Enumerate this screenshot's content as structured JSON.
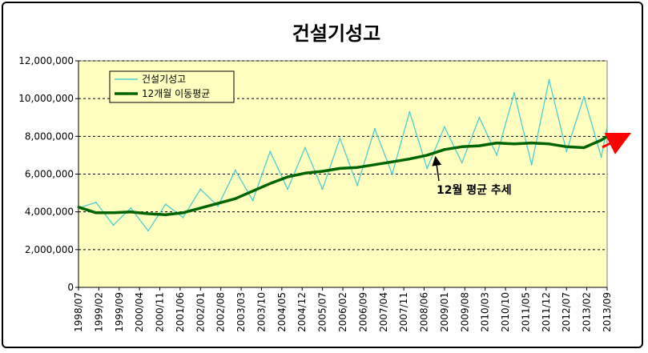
{
  "chart_data": {
    "type": "line",
    "title": "건설기성고",
    "xlabel": "",
    "ylabel": "",
    "ylim": [
      0,
      12000000
    ],
    "y_ticks": [
      0,
      2000000,
      4000000,
      6000000,
      8000000,
      10000000,
      12000000
    ],
    "y_tick_labels": [
      "0",
      "2,000,000",
      "4,000,000",
      "6,000,000",
      "8,000,000",
      "10,000,000",
      "12,000,000"
    ],
    "x_range": [
      "1998/07",
      "2013/09"
    ],
    "x_tick_labels": [
      "1998/07",
      "1999/02",
      "1999/09",
      "2000/04",
      "2000/11",
      "2001/06",
      "2002/01",
      "2002/08",
      "2003/03",
      "2003/10",
      "2004/05",
      "2004/12",
      "2005/07",
      "2006/02",
      "2006/09",
      "2007/04",
      "2007/11",
      "2008/06",
      "2009/01",
      "2009/08",
      "2010/03",
      "2010/10",
      "2011/05",
      "2011/12",
      "2012/07",
      "2013/02",
      "2013/09"
    ],
    "grid": "horizontal dashed",
    "legend_position": "top-left",
    "plot_background": "#ffffc0",
    "annotation": {
      "text": "12월 평균 추세",
      "points_to": "2008/10"
    },
    "trend_arrow_color": "#ff0000",
    "series": [
      {
        "name": "건설기성고",
        "color": "#4fcfcf",
        "x": [
          "1998/07",
          "1999/01",
          "1999/07",
          "2000/01",
          "2000/07",
          "2001/01",
          "2001/07",
          "2002/01",
          "2002/07",
          "2003/01",
          "2003/07",
          "2004/01",
          "2004/07",
          "2005/01",
          "2005/07",
          "2006/01",
          "2006/07",
          "2007/01",
          "2007/07",
          "2008/01",
          "2008/07",
          "2009/01",
          "2009/07",
          "2010/01",
          "2010/07",
          "2011/01",
          "2011/07",
          "2012/01",
          "2012/07",
          "2013/01",
          "2013/07",
          "2013/09"
        ],
        "values": [
          4200000,
          4500000,
          3300000,
          4200000,
          3000000,
          4400000,
          3700000,
          5200000,
          4300000,
          6200000,
          4600000,
          7200000,
          5200000,
          7400000,
          5200000,
          7900000,
          5400000,
          8400000,
          6000000,
          9300000,
          6300000,
          8500000,
          6600000,
          9000000,
          7000000,
          10300000,
          6500000,
          11000000,
          7200000,
          10100000,
          6900000,
          8500000
        ]
      },
      {
        "name": "12개월 이동평균",
        "color": "#006400",
        "x": [
          "1998/07",
          "1999/01",
          "1999/07",
          "2000/01",
          "2000/07",
          "2001/01",
          "2001/07",
          "2002/01",
          "2002/07",
          "2003/01",
          "2003/07",
          "2004/01",
          "2004/07",
          "2005/01",
          "2005/07",
          "2006/01",
          "2006/07",
          "2007/01",
          "2007/07",
          "2008/01",
          "2008/07",
          "2009/01",
          "2009/07",
          "2010/01",
          "2010/07",
          "2011/01",
          "2011/07",
          "2012/01",
          "2012/07",
          "2013/01",
          "2013/07",
          "2013/09"
        ],
        "values": [
          4250000,
          3950000,
          3950000,
          4000000,
          3900000,
          3850000,
          3950000,
          4200000,
          4450000,
          4700000,
          5100000,
          5500000,
          5850000,
          6050000,
          6150000,
          6300000,
          6350000,
          6500000,
          6650000,
          6800000,
          7000000,
          7300000,
          7450000,
          7500000,
          7650000,
          7600000,
          7650000,
          7600000,
          7450000,
          7400000,
          7800000,
          8000000
        ]
      }
    ]
  }
}
